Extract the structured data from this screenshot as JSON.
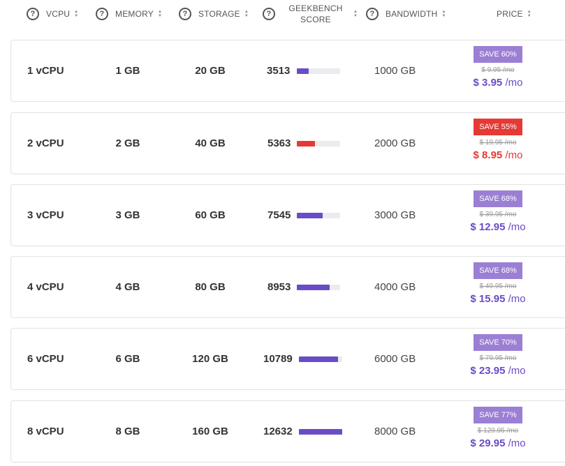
{
  "header": {
    "vcpu": "VCPU",
    "memory": "MEMORY",
    "storage": "STORAGE",
    "geekbench_line1": "GEEKBENCH",
    "geekbench_line2": "SCORE",
    "bandwidth": "BANDWIDTH",
    "price": "PRICE",
    "help_glyph": "?",
    "sort_up": "▲",
    "sort_down": "▼"
  },
  "colors": {
    "purple": "#6a4cc6",
    "red": "#e53935",
    "badge_purple": "#9b7fd4",
    "badge_red": "#e53935"
  },
  "plans": [
    {
      "vcpu": "1 vCPU",
      "memory": "1 GB",
      "storage": "20 GB",
      "geekbench": "3513",
      "score_fraction": 0.27,
      "bar_color": "#6a4cc6",
      "bandwidth": "1000 GB",
      "badge": "SAVE 60%",
      "old_price": "$ 9.95 /mo",
      "price": "$ 3.95",
      "per": "/mo",
      "accent": "#6a4cc6",
      "badge_color": "#9b7fd4"
    },
    {
      "vcpu": "2 vCPU",
      "memory": "2 GB",
      "storage": "40 GB",
      "geekbench": "5363",
      "score_fraction": 0.42,
      "bar_color": "#e53935",
      "bandwidth": "2000 GB",
      "badge": "SAVE 55%",
      "old_price": "$ 19.95 /mo",
      "price": "$ 8.95",
      "per": "/mo",
      "accent": "#e53935",
      "badge_color": "#e53935"
    },
    {
      "vcpu": "3 vCPU",
      "memory": "3 GB",
      "storage": "60 GB",
      "geekbench": "7545",
      "score_fraction": 0.6,
      "bar_color": "#6a4cc6",
      "bandwidth": "3000 GB",
      "badge": "SAVE 68%",
      "old_price": "$ 39.95 /mo",
      "price": "$ 12.95",
      "per": "/mo",
      "accent": "#6a4cc6",
      "badge_color": "#9b7fd4"
    },
    {
      "vcpu": "4 vCPU",
      "memory": "4 GB",
      "storage": "80 GB",
      "geekbench": "8953",
      "score_fraction": 0.75,
      "bar_color": "#6a4cc6",
      "bandwidth": "4000 GB",
      "badge": "SAVE 68%",
      "old_price": "$ 49.95 /mo",
      "price": "$ 15.95",
      "per": "/mo",
      "accent": "#6a4cc6",
      "badge_color": "#9b7fd4"
    },
    {
      "vcpu": "6 vCPU",
      "memory": "6 GB",
      "storage": "120 GB",
      "geekbench": "10789",
      "score_fraction": 0.9,
      "bar_color": "#6a4cc6",
      "bandwidth": "6000 GB",
      "badge": "SAVE 70%",
      "old_price": "$ 79.95 /mo",
      "price": "$ 23.95",
      "per": "/mo",
      "accent": "#6a4cc6",
      "badge_color": "#9b7fd4"
    },
    {
      "vcpu": "8 vCPU",
      "memory": "8 GB",
      "storage": "160 GB",
      "geekbench": "12632",
      "score_fraction": 1.0,
      "bar_color": "#6a4cc6",
      "bandwidth": "8000 GB",
      "badge": "SAVE 77%",
      "old_price": "$ 129.95 /mo",
      "price": "$ 29.95",
      "per": "/mo",
      "accent": "#6a4cc6",
      "badge_color": "#9b7fd4"
    }
  ]
}
